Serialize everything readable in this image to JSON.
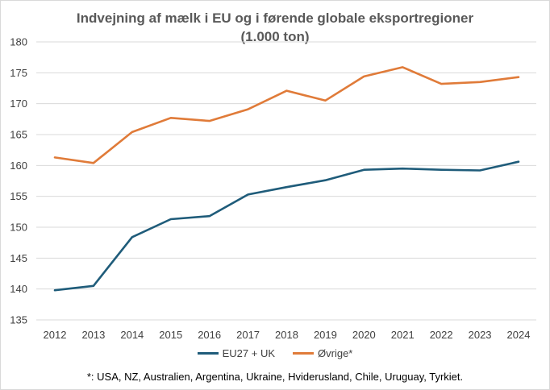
{
  "chart_data": {
    "type": "line",
    "title_line1": "Indvejning af mælk i EU og i førende globale eksportregioner",
    "title_line2": "(1.000 ton)",
    "categories": [
      "2012",
      "2013",
      "2014",
      "2015",
      "2016",
      "2017",
      "2018",
      "2019",
      "2020",
      "2021",
      "2022",
      "2023",
      "2024"
    ],
    "ylim": [
      135,
      180
    ],
    "yticks": [
      135,
      140,
      145,
      150,
      155,
      160,
      165,
      170,
      175,
      180
    ],
    "grid": true,
    "legend_position": "bottom",
    "series": [
      {
        "name": "EU27 + UK",
        "color": "#1f5c7a",
        "values": [
          139.8,
          140.5,
          148.4,
          151.3,
          151.8,
          155.3,
          156.5,
          157.6,
          159.3,
          159.5,
          159.3,
          159.2,
          160.6
        ]
      },
      {
        "name": "Øvrige*",
        "color": "#e07b39",
        "values": [
          161.3,
          160.4,
          165.4,
          167.7,
          167.2,
          169.1,
          172.1,
          170.5,
          174.4,
          175.9,
          173.2,
          173.5,
          174.3
        ]
      }
    ],
    "footnote": "*: USA, NZ, Australien, Argentina, Ukraine, Hviderusland, Chile, Uruguay, Tyrkiet."
  }
}
